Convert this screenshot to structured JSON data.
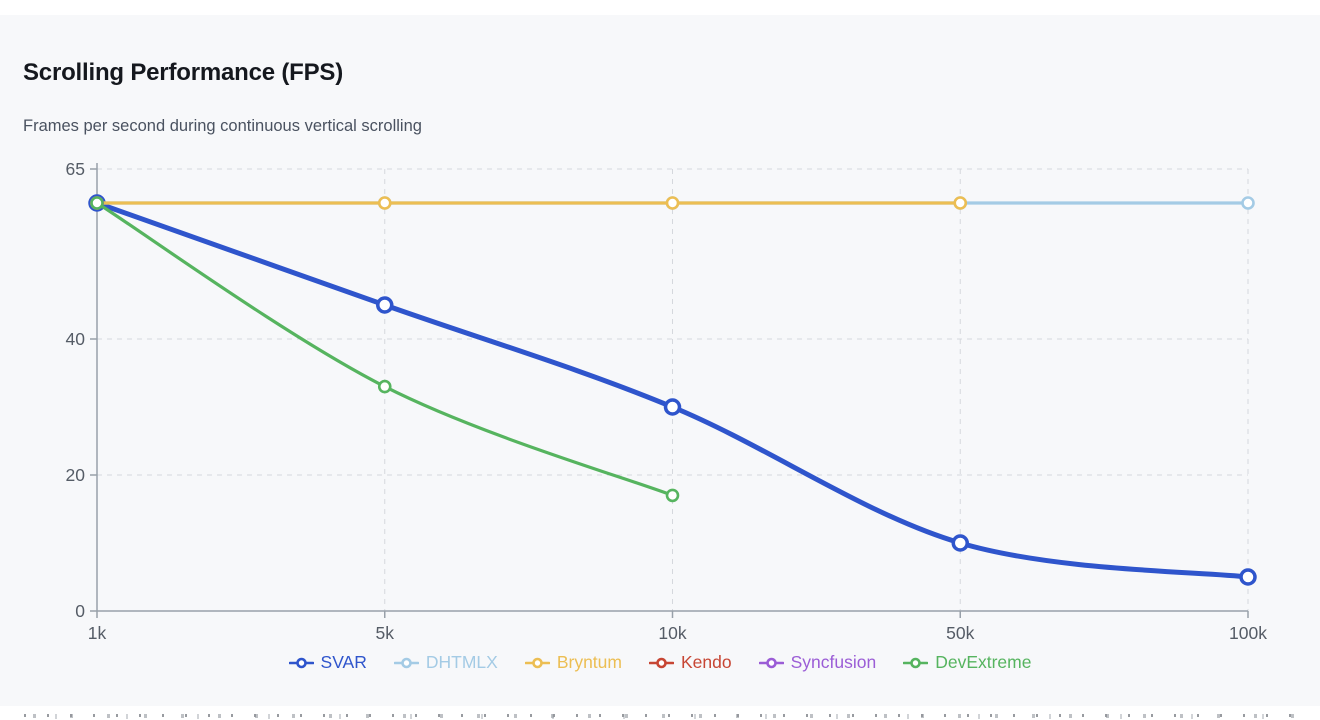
{
  "header": {
    "title": "Scrolling Performance (FPS)",
    "subtitle": "Frames per second during continuous vertical scrolling"
  },
  "chart_data": {
    "type": "line",
    "title": "Scrolling Performance (FPS)",
    "subtitle": "Frames per second during continuous vertical scrolling",
    "categories": [
      "1k",
      "5k",
      "10k",
      "50k",
      "100k"
    ],
    "xlabel": "",
    "ylabel": "",
    "ylim": [
      0,
      65
    ],
    "y_ticks": [
      0,
      20,
      40,
      65
    ],
    "grid": "dashed",
    "legend_position": "bottom",
    "series": [
      {
        "name": "SVAR",
        "color": "#2f55cc",
        "line_width": 5,
        "marker_radius": 7,
        "marker_stroke": 3.5,
        "values": [
          60,
          45,
          30,
          10,
          5
        ]
      },
      {
        "name": "DHTMLX",
        "color": "#a4cbe5",
        "line_width": 3.2,
        "marker_radius": 5.5,
        "marker_stroke": 2.6,
        "values": [
          60,
          60,
          60,
          60,
          60
        ]
      },
      {
        "name": "Bryntum",
        "color": "#ecbe53",
        "line_width": 3.2,
        "marker_radius": 5.5,
        "marker_stroke": 2.6,
        "values": [
          60,
          60,
          60,
          60,
          null
        ]
      },
      {
        "name": "Kendo",
        "color": "#c74634",
        "line_width": 3.2,
        "marker_radius": 5.5,
        "marker_stroke": 2.6,
        "values": [
          60,
          null,
          null,
          null,
          null
        ]
      },
      {
        "name": "Syncfusion",
        "color": "#9b5dd6",
        "line_width": 3.2,
        "marker_radius": 5.5,
        "marker_stroke": 2.6,
        "values": [
          60,
          null,
          null,
          null,
          null
        ]
      },
      {
        "name": "DevExtreme",
        "color": "#56b45f",
        "line_width": 3.2,
        "marker_radius": 5.5,
        "marker_stroke": 2.6,
        "values": [
          60,
          33,
          17,
          null,
          null
        ]
      }
    ],
    "colors": {
      "background": "#f7f8fa",
      "axis": "#98a0a9",
      "grid": "#d5d8dd",
      "tick_label": "#555c66",
      "title": "#15181e",
      "subtitle": "#4a5260"
    }
  }
}
